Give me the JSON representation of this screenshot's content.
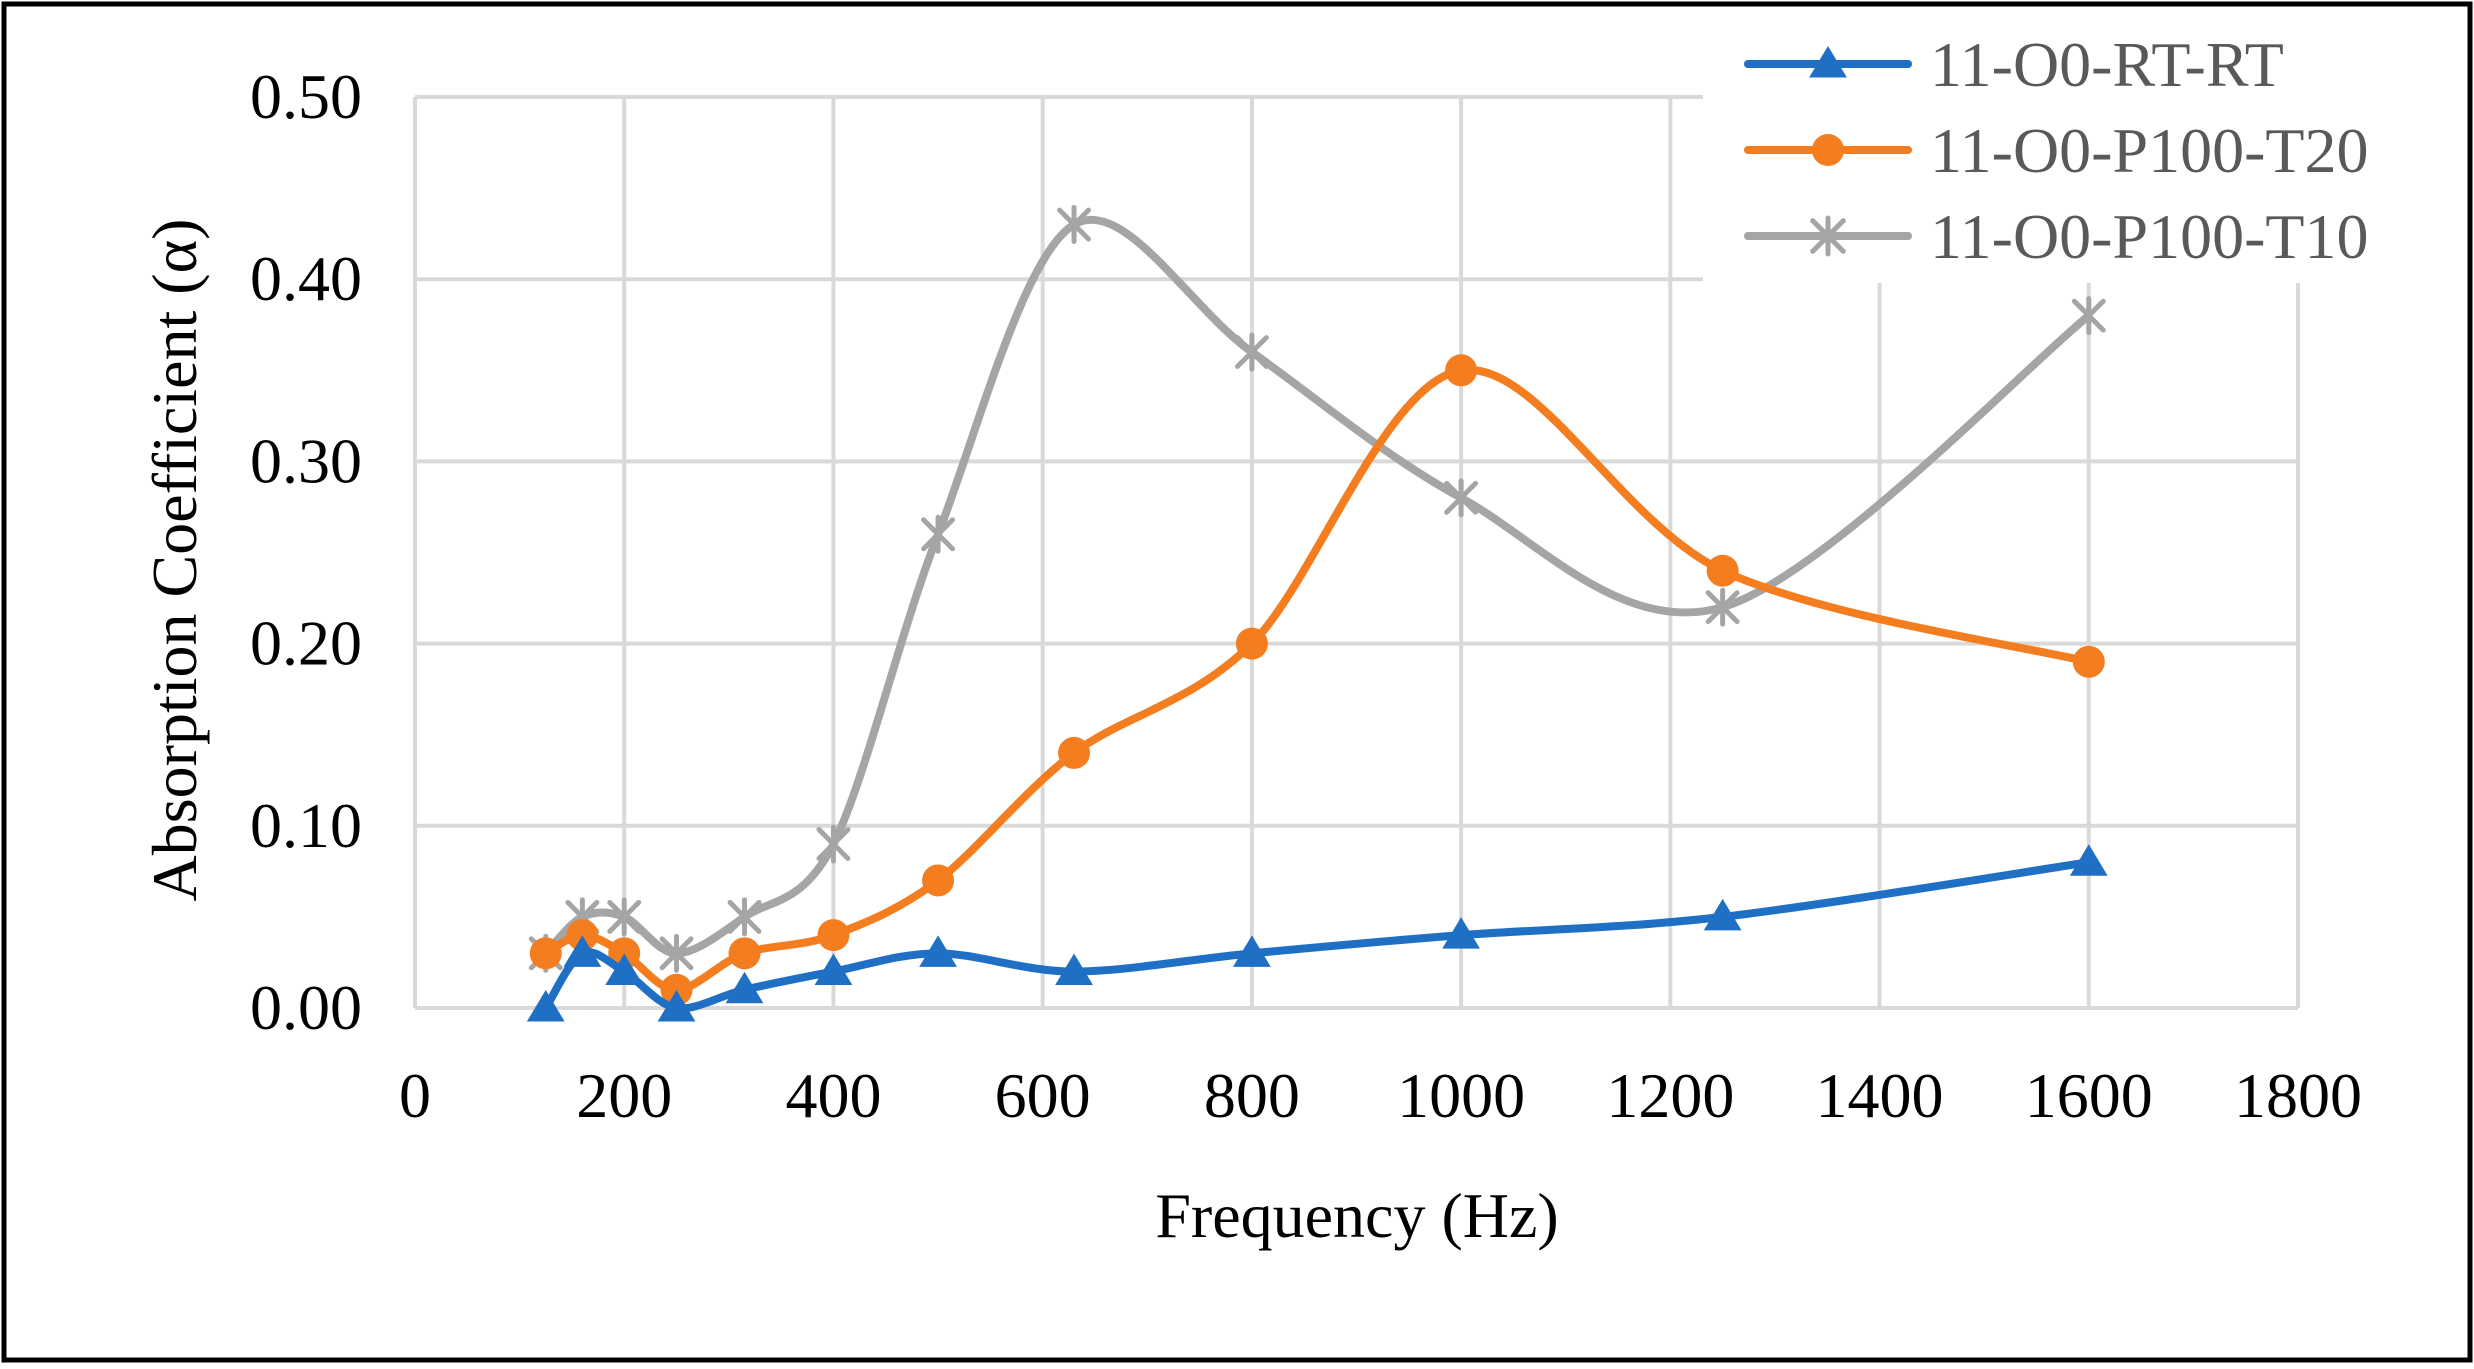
{
  "chart_data": {
    "type": "line",
    "smooth": true,
    "title": "",
    "xlabel": "Frequency (Hz)",
    "ylabel": "Absorption Coefficient (α)",
    "xlim": [
      0,
      1800
    ],
    "ylim": [
      0,
      0.5
    ],
    "xticks": [
      0,
      200,
      400,
      600,
      800,
      1000,
      1200,
      1400,
      1600,
      1800
    ],
    "xtick_labels": [
      "0",
      "200",
      "400",
      "600",
      "800",
      "1000",
      "1200",
      "1400",
      "1600",
      "1800"
    ],
    "yticks": [
      0,
      0.1,
      0.2,
      0.3,
      0.4,
      0.5
    ],
    "ytick_labels": [
      "0.00",
      "0.10",
      "0.20",
      "0.30",
      "0.40",
      "0.50"
    ],
    "grid": true,
    "legend_position": "top-right",
    "x": [
      125,
      160,
      200,
      250,
      315,
      400,
      500,
      630,
      800,
      1000,
      1250,
      1600
    ],
    "series": [
      {
        "name": "11-O0-RT-RT",
        "color": "#1f6fc5",
        "marker": "triangle",
        "values": [
          0.0,
          0.03,
          0.02,
          0.0,
          0.01,
          0.02,
          0.03,
          0.02,
          0.03,
          0.04,
          0.05,
          0.08
        ]
      },
      {
        "name": "11-O0-P100-T20",
        "color": "#f47d20",
        "marker": "circle",
        "values": [
          0.03,
          0.04,
          0.03,
          0.01,
          0.03,
          0.04,
          0.07,
          0.14,
          0.2,
          0.35,
          0.24,
          0.19
        ]
      },
      {
        "name": "11-O0-P100-T10",
        "color": "#a5a5a5",
        "marker": "star",
        "values": [
          0.03,
          0.05,
          0.05,
          0.03,
          0.05,
          0.09,
          0.26,
          0.43,
          0.36,
          0.28,
          0.22,
          0.38
        ]
      }
    ]
  }
}
